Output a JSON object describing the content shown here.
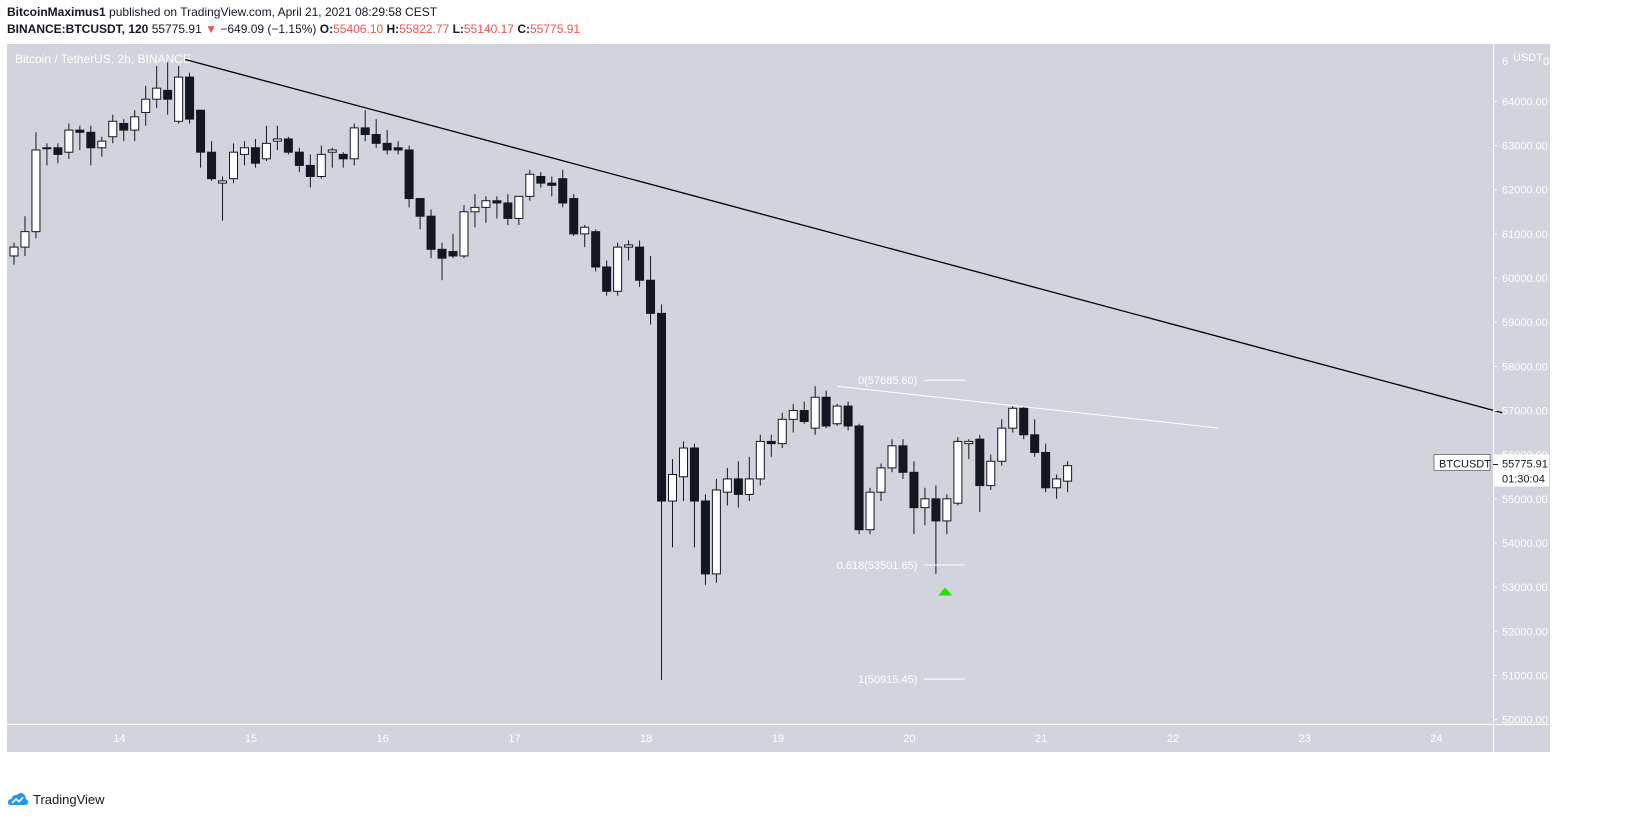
{
  "header": {
    "author": "BitcoinMaximus1",
    "published": "published on TradingView.com, April 21, 2021 08:29:58 CEST",
    "symbol": "BINANCE:BTCUSDT, 120",
    "last": "55775.91",
    "change": "−649.09 (−1.15%)",
    "o_label": "O:",
    "o_val": "55406.10",
    "h_label": "H:",
    "h_val": "55822.77",
    "l_label": "L:",
    "l_val": "55140.17",
    "c_label": "C:",
    "c_val": "55775.91"
  },
  "chart_title": "Bitcoin / TetherUS, 2h, BINANCE",
  "footer": {
    "brand": "TradingView"
  },
  "colors": {
    "panel": "#d1d4dc",
    "up_body": "#ffffff",
    "down_body": "#131722",
    "trendline": "#000000",
    "fib_line": "#ffffff",
    "marker": "#26e000",
    "price_up": "#26a69a",
    "price_down": "#ef5350"
  },
  "chart_data": {
    "type": "candlestick",
    "x_tick_labels": [
      "14",
      "15",
      "16",
      "17",
      "18",
      "19",
      "20",
      "21",
      "22",
      "23",
      "24"
    ],
    "y_axis_unit": "USDT",
    "y_top_label": "6",
    "y_tick_labels": [
      "64000.00",
      "63000.00",
      "62000.00",
      "61000.00",
      "60000.00",
      "59000.00",
      "58000.00",
      "57000.00",
      "56000.00",
      "55000.00",
      "54000.00",
      "53000.00",
      "52000.00",
      "51000.00",
      "50000.00"
    ],
    "ylim": [
      49900,
      65300
    ],
    "interval_hours": 2,
    "day_index_of_first_candle": 13.2,
    "candles": [
      {
        "o": 60500,
        "h": 60800,
        "l": 60300,
        "c": 60700
      },
      {
        "o": 60700,
        "h": 61400,
        "l": 60500,
        "c": 61050
      },
      {
        "o": 61050,
        "h": 63300,
        "l": 60900,
        "c": 62900
      },
      {
        "o": 62950,
        "h": 63050,
        "l": 62550,
        "c": 62950
      },
      {
        "o": 62950,
        "h": 63050,
        "l": 62600,
        "c": 62800
      },
      {
        "o": 62850,
        "h": 63500,
        "l": 62700,
        "c": 63350
      },
      {
        "o": 63350,
        "h": 63450,
        "l": 62900,
        "c": 63300
      },
      {
        "o": 63300,
        "h": 63450,
        "l": 62550,
        "c": 62950
      },
      {
        "o": 62950,
        "h": 63200,
        "l": 62750,
        "c": 63100
      },
      {
        "o": 63200,
        "h": 63700,
        "l": 63050,
        "c": 63550
      },
      {
        "o": 63500,
        "h": 63600,
        "l": 63100,
        "c": 63350
      },
      {
        "o": 63350,
        "h": 63800,
        "l": 63100,
        "c": 63650
      },
      {
        "o": 63750,
        "h": 64350,
        "l": 63450,
        "c": 64050
      },
      {
        "o": 64050,
        "h": 64800,
        "l": 63850,
        "c": 64300
      },
      {
        "o": 64250,
        "h": 64900,
        "l": 63700,
        "c": 64050
      },
      {
        "o": 63550,
        "h": 64800,
        "l": 63500,
        "c": 64550
      },
      {
        "o": 64550,
        "h": 64650,
        "l": 63500,
        "c": 63600
      },
      {
        "o": 63800,
        "h": 63800,
        "l": 62500,
        "c": 62850
      },
      {
        "o": 62850,
        "h": 63100,
        "l": 62200,
        "c": 62250
      },
      {
        "o": 62150,
        "h": 62300,
        "l": 61300,
        "c": 62200
      },
      {
        "o": 62250,
        "h": 63050,
        "l": 62150,
        "c": 62850
      },
      {
        "o": 62800,
        "h": 63100,
        "l": 62550,
        "c": 62950
      },
      {
        "o": 62950,
        "h": 63150,
        "l": 62500,
        "c": 62600
      },
      {
        "o": 62700,
        "h": 63450,
        "l": 62650,
        "c": 63050
      },
      {
        "o": 63100,
        "h": 63450,
        "l": 62900,
        "c": 63150
      },
      {
        "o": 63150,
        "h": 63200,
        "l": 62800,
        "c": 62850
      },
      {
        "o": 62850,
        "h": 62950,
        "l": 62400,
        "c": 62550
      },
      {
        "o": 62550,
        "h": 62800,
        "l": 62050,
        "c": 62300
      },
      {
        "o": 62300,
        "h": 63000,
        "l": 62250,
        "c": 62800
      },
      {
        "o": 62850,
        "h": 62950,
        "l": 62500,
        "c": 62900
      },
      {
        "o": 62800,
        "h": 62850,
        "l": 62500,
        "c": 62700
      },
      {
        "o": 62700,
        "h": 63500,
        "l": 62550,
        "c": 63400
      },
      {
        "o": 63400,
        "h": 63800,
        "l": 63100,
        "c": 63250
      },
      {
        "o": 63250,
        "h": 63600,
        "l": 62950,
        "c": 63050
      },
      {
        "o": 63050,
        "h": 63350,
        "l": 62800,
        "c": 62900
      },
      {
        "o": 62950,
        "h": 63100,
        "l": 62800,
        "c": 62900
      },
      {
        "o": 62900,
        "h": 63000,
        "l": 61600,
        "c": 61800
      },
      {
        "o": 61800,
        "h": 61800,
        "l": 61100,
        "c": 61400
      },
      {
        "o": 61400,
        "h": 61550,
        "l": 60450,
        "c": 60650
      },
      {
        "o": 60650,
        "h": 60800,
        "l": 59950,
        "c": 60450
      },
      {
        "o": 60600,
        "h": 61000,
        "l": 60450,
        "c": 60500
      },
      {
        "o": 60500,
        "h": 61650,
        "l": 60450,
        "c": 61500
      },
      {
        "o": 61500,
        "h": 61900,
        "l": 61150,
        "c": 61600
      },
      {
        "o": 61600,
        "h": 61850,
        "l": 61250,
        "c": 61750
      },
      {
        "o": 61750,
        "h": 61850,
        "l": 61350,
        "c": 61700
      },
      {
        "o": 61700,
        "h": 61900,
        "l": 61200,
        "c": 61350
      },
      {
        "o": 61350,
        "h": 61850,
        "l": 61200,
        "c": 61850
      },
      {
        "o": 61850,
        "h": 62450,
        "l": 61750,
        "c": 62350
      },
      {
        "o": 62300,
        "h": 62400,
        "l": 62050,
        "c": 62150
      },
      {
        "o": 62150,
        "h": 62300,
        "l": 61850,
        "c": 62100
      },
      {
        "o": 62250,
        "h": 62450,
        "l": 61600,
        "c": 61700
      },
      {
        "o": 61800,
        "h": 61900,
        "l": 60950,
        "c": 61000
      },
      {
        "o": 61000,
        "h": 61200,
        "l": 60700,
        "c": 61150
      },
      {
        "o": 61050,
        "h": 61100,
        "l": 60150,
        "c": 60250
      },
      {
        "o": 60250,
        "h": 60400,
        "l": 59600,
        "c": 59700
      },
      {
        "o": 59700,
        "h": 60800,
        "l": 59600,
        "c": 60700
      },
      {
        "o": 60700,
        "h": 60850,
        "l": 60400,
        "c": 60750
      },
      {
        "o": 60700,
        "h": 60850,
        "l": 59800,
        "c": 59950
      },
      {
        "o": 59950,
        "h": 60500,
        "l": 58950,
        "c": 59200
      },
      {
        "o": 59200,
        "h": 59400,
        "l": 50900,
        "c": 54950
      },
      {
        "o": 54950,
        "h": 55900,
        "l": 53900,
        "c": 55550
      },
      {
        "o": 55500,
        "h": 56300,
        "l": 54950,
        "c": 56150
      },
      {
        "o": 56150,
        "h": 56250,
        "l": 53900,
        "c": 54950
      },
      {
        "o": 54950,
        "h": 55100,
        "l": 53050,
        "c": 53300
      },
      {
        "o": 53300,
        "h": 55450,
        "l": 53100,
        "c": 55200
      },
      {
        "o": 55150,
        "h": 55700,
        "l": 54850,
        "c": 55450
      },
      {
        "o": 55450,
        "h": 55850,
        "l": 54800,
        "c": 55100
      },
      {
        "o": 55100,
        "h": 55950,
        "l": 54950,
        "c": 55450
      },
      {
        "o": 55450,
        "h": 56450,
        "l": 55300,
        "c": 56300
      },
      {
        "o": 56300,
        "h": 56450,
        "l": 55950,
        "c": 56250
      },
      {
        "o": 56250,
        "h": 56950,
        "l": 56150,
        "c": 56800
      },
      {
        "o": 56800,
        "h": 57150,
        "l": 56500,
        "c": 57000
      },
      {
        "o": 57000,
        "h": 57200,
        "l": 56700,
        "c": 56750
      },
      {
        "o": 56600,
        "h": 57550,
        "l": 56450,
        "c": 57300
      },
      {
        "o": 57300,
        "h": 57450,
        "l": 56600,
        "c": 56650
      },
      {
        "o": 56700,
        "h": 57150,
        "l": 56650,
        "c": 57100
      },
      {
        "o": 57100,
        "h": 57200,
        "l": 56550,
        "c": 56650
      },
      {
        "o": 56650,
        "h": 56700,
        "l": 54200,
        "c": 54300
      },
      {
        "o": 54300,
        "h": 55250,
        "l": 54200,
        "c": 55150
      },
      {
        "o": 55150,
        "h": 55800,
        "l": 54950,
        "c": 55700
      },
      {
        "o": 55700,
        "h": 56350,
        "l": 55600,
        "c": 56200
      },
      {
        "o": 56200,
        "h": 56350,
        "l": 55450,
        "c": 55600
      },
      {
        "o": 55600,
        "h": 55850,
        "l": 54200,
        "c": 54800
      },
      {
        "o": 54800,
        "h": 55250,
        "l": 54400,
        "c": 55000
      },
      {
        "o": 55000,
        "h": 55300,
        "l": 53300,
        "c": 54500
      },
      {
        "o": 54500,
        "h": 55100,
        "l": 54200,
        "c": 55000
      },
      {
        "o": 54900,
        "h": 56400,
        "l": 54850,
        "c": 56300
      },
      {
        "o": 56250,
        "h": 56350,
        "l": 55900,
        "c": 56300
      },
      {
        "o": 56350,
        "h": 56450,
        "l": 54700,
        "c": 55300
      },
      {
        "o": 55300,
        "h": 56000,
        "l": 55200,
        "c": 55850
      },
      {
        "o": 55850,
        "h": 56800,
        "l": 55750,
        "c": 56600
      },
      {
        "o": 56600,
        "h": 57100,
        "l": 56500,
        "c": 57050
      },
      {
        "o": 57050,
        "h": 57100,
        "l": 56350,
        "c": 56450
      },
      {
        "o": 56450,
        "h": 56800,
        "l": 55950,
        "c": 56050
      },
      {
        "o": 56050,
        "h": 56250,
        "l": 55150,
        "c": 55250
      },
      {
        "o": 55250,
        "h": 55550,
        "l": 55000,
        "c": 55450
      },
      {
        "o": 55400,
        "h": 55850,
        "l": 55150,
        "c": 55750
      }
    ],
    "trendline": {
      "from": {
        "day": 14.5,
        "price": 64950
      },
      "to": {
        "day": 24.5,
        "price": 56950
      }
    },
    "resistance_line": {
      "from": {
        "day": 19.45,
        "price": 57550
      },
      "to": {
        "day": 22.35,
        "price": 56600
      }
    },
    "fib_levels": [
      {
        "label": "0(57685.60)",
        "price": 57685.6,
        "day_start": 19.3,
        "day_end": 20.4
      },
      {
        "label": "0.618(53501.65)",
        "price": 53501.65,
        "day_start": 19.3,
        "day_end": 20.4
      },
      {
        "label": "1(50915.45)",
        "price": 50915.45,
        "day_start": 19.3,
        "day_end": 20.4
      }
    ],
    "marker": {
      "day": 20.27,
      "price": 52900,
      "shape": "triangle-up"
    },
    "price_label": {
      "symbol": "BTCUSDT",
      "price": "55775.91",
      "countdown": "01:30:04",
      "value": 55775.91
    },
    "grid": false
  }
}
